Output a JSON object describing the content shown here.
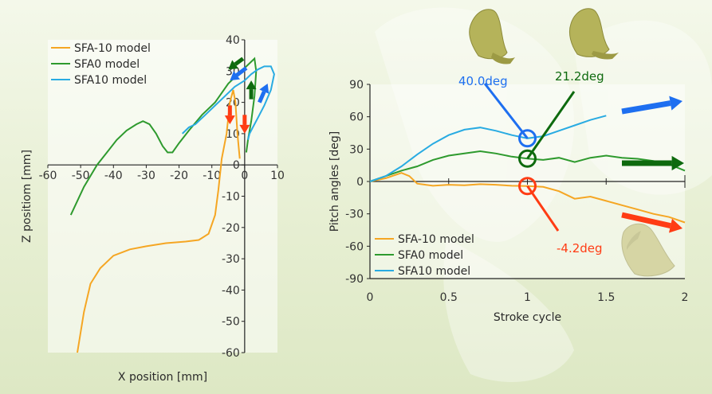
{
  "chart_data": [
    {
      "type": "line",
      "xlabel": "X position [mm]",
      "ylabel": "Z positiom [mm]",
      "xlim": [
        -60,
        10
      ],
      "ylim": [
        -60,
        40
      ],
      "xticks": [
        -60,
        -50,
        -40,
        -30,
        -20,
        -10,
        0,
        10
      ],
      "yticks": [
        -60,
        -50,
        -40,
        -30,
        -20,
        -10,
        0,
        10,
        20,
        30,
        40
      ],
      "legend_position": "top-left",
      "legend": [
        "SFA-10 model",
        "SFA0 model",
        "SFA10 model"
      ],
      "series": [
        {
          "name": "SFA-10 model",
          "color": "#f5a623",
          "points": [
            [
              -51,
              -60
            ],
            [
              -49,
              -47
            ],
            [
              -47,
              -38
            ],
            [
              -44,
              -33
            ],
            [
              -40,
              -29
            ],
            [
              -35,
              -27
            ],
            [
              -30,
              -26
            ],
            [
              -24,
              -25
            ],
            [
              -18,
              -24.5
            ],
            [
              -14,
              -24
            ],
            [
              -11,
              -22
            ],
            [
              -9,
              -16
            ],
            [
              -8,
              -8
            ],
            [
              -7,
              2
            ],
            [
              -5.5,
              10
            ],
            [
              -4.5,
              20
            ],
            [
              -3.5,
              24
            ],
            [
              -2.8,
              20
            ],
            [
              -2.2,
              10
            ],
            [
              -1.5,
              2
            ]
          ]
        },
        {
          "name": "SFA0 model",
          "color": "#2e9a2e",
          "points": [
            [
              -53,
              -16
            ],
            [
              -49,
              -7
            ],
            [
              -45,
              0
            ],
            [
              -42,
              4
            ],
            [
              -39,
              8
            ],
            [
              -36,
              11
            ],
            [
              -33,
              13
            ],
            [
              -31,
              14
            ],
            [
              -29,
              13
            ],
            [
              -27,
              10
            ],
            [
              -25,
              6
            ],
            [
              -23.5,
              4
            ],
            [
              -22,
              4
            ],
            [
              -20,
              7
            ],
            [
              -17,
              11
            ],
            [
              -13,
              16
            ],
            [
              -9,
              20
            ],
            [
              -5,
              26
            ],
            [
              -2,
              29
            ],
            [
              0,
              31
            ],
            [
              2,
              33
            ],
            [
              3,
              34
            ],
            [
              3.5,
              30
            ],
            [
              3,
              22
            ],
            [
              2,
              14
            ],
            [
              1,
              8
            ],
            [
              0.5,
              4
            ]
          ]
        },
        {
          "name": "SFA10 model",
          "color": "#29abe2",
          "points": [
            [
              -19,
              10
            ],
            [
              -17,
              12
            ],
            [
              -15,
              13
            ],
            [
              -12,
              16
            ],
            [
              -9,
              19
            ],
            [
              -6,
              22
            ],
            [
              -3,
              25
            ],
            [
              0,
              27
            ],
            [
              2,
              29
            ],
            [
              4,
              30.5
            ],
            [
              6,
              31.5
            ],
            [
              8,
              31.5
            ],
            [
              9,
              29
            ],
            [
              8,
              24
            ],
            [
              6,
              19
            ],
            [
              4,
              15
            ],
            [
              2.5,
              12
            ],
            [
              1.5,
              10
            ],
            [
              1,
              8
            ]
          ]
        }
      ],
      "arrows": [
        {
          "color": "#1e6ff0",
          "from": [
            0.5,
            31
          ],
          "to": [
            -4.5,
            27
          ]
        },
        {
          "color": "#0e6a0e",
          "from": [
            -0.5,
            34
          ],
          "to": [
            -5,
            30.5
          ]
        },
        {
          "color": "#ff3c14",
          "from": [
            -4.5,
            19
          ],
          "to": [
            -4.5,
            13
          ]
        },
        {
          "color": "#ff3c14",
          "from": [
            0,
            16
          ],
          "to": [
            0,
            10
          ]
        },
        {
          "color": "#0e6a0e",
          "from": [
            2,
            21
          ],
          "to": [
            2,
            27
          ]
        },
        {
          "color": "#1e6ff0",
          "from": [
            4.5,
            20
          ],
          "to": [
            7,
            26
          ]
        }
      ]
    },
    {
      "type": "line",
      "xlabel": "Stroke cycle",
      "ylabel": "Pitch angles [deg]",
      "xlim": [
        0,
        2
      ],
      "ylim": [
        -90,
        90
      ],
      "xticks": [
        0,
        0.5,
        1,
        1.5,
        2
      ],
      "yticks": [
        -90,
        -60,
        -30,
        0,
        30,
        60,
        90
      ],
      "legend_position": "bottom-left",
      "legend": [
        "SFA-10 model",
        "SFA0 model",
        "SFA10 model"
      ],
      "series": [
        {
          "name": "SFA-10 model",
          "color": "#f5a623",
          "points": [
            [
              0,
              0
            ],
            [
              0.1,
              3
            ],
            [
              0.2,
              8
            ],
            [
              0.25,
              5
            ],
            [
              0.3,
              -2
            ],
            [
              0.4,
              -4
            ],
            [
              0.5,
              -3
            ],
            [
              0.6,
              -3.5
            ],
            [
              0.7,
              -2.5
            ],
            [
              0.8,
              -3
            ],
            [
              0.9,
              -4
            ],
            [
              1.0,
              -4.2
            ],
            [
              1.1,
              -5
            ],
            [
              1.2,
              -9
            ],
            [
              1.3,
              -16
            ],
            [
              1.4,
              -14
            ],
            [
              1.5,
              -18
            ],
            [
              1.6,
              -22
            ],
            [
              1.7,
              -26
            ],
            [
              1.8,
              -30
            ],
            [
              1.9,
              -33
            ],
            [
              2.0,
              -38
            ]
          ]
        },
        {
          "name": "SFA0 model",
          "color": "#2e9a2e",
          "points": [
            [
              0,
              0
            ],
            [
              0.1,
              5
            ],
            [
              0.2,
              10
            ],
            [
              0.3,
              14
            ],
            [
              0.4,
              20
            ],
            [
              0.5,
              24
            ],
            [
              0.6,
              26
            ],
            [
              0.7,
              28
            ],
            [
              0.8,
              26
            ],
            [
              0.9,
              23
            ],
            [
              1.0,
              21.2
            ],
            [
              1.1,
              20
            ],
            [
              1.2,
              22
            ],
            [
              1.3,
              18
            ],
            [
              1.4,
              22
            ],
            [
              1.5,
              24
            ],
            [
              1.6,
              22
            ],
            [
              1.7,
              21
            ],
            [
              1.8,
              19
            ],
            [
              1.9,
              16
            ],
            [
              2.0,
              10
            ]
          ]
        },
        {
          "name": "SFA10 model",
          "color": "#29abe2",
          "points": [
            [
              0,
              0
            ],
            [
              0.1,
              5
            ],
            [
              0.2,
              14
            ],
            [
              0.3,
              25
            ],
            [
              0.4,
              35
            ],
            [
              0.5,
              43
            ],
            [
              0.6,
              48
            ],
            [
              0.7,
              50
            ],
            [
              0.8,
              47
            ],
            [
              0.9,
              43
            ],
            [
              1.0,
              40
            ],
            [
              1.1,
              42
            ],
            [
              1.2,
              47
            ],
            [
              1.3,
              52
            ],
            [
              1.4,
              57
            ],
            [
              1.5,
              61
            ]
          ]
        }
      ],
      "annotations": [
        {
          "text": "40.0deg",
          "color": "#1e6ff0",
          "x": 1.0,
          "y": 40.0
        },
        {
          "text": "21.2deg",
          "color": "#0e6a0e",
          "x": 1.0,
          "y": 21.2
        },
        {
          "text": "-4.2deg",
          "color": "#ff3c14",
          "x": 1.0,
          "y": -4.2
        }
      ]
    }
  ],
  "colors": {
    "sfa_minus10": "#f5a623",
    "sfa0": "#2e9a2e",
    "sfa10": "#29abe2",
    "arrow_blue": "#1e6ff0",
    "arrow_green": "#0e6a0e",
    "arrow_red": "#ff3c14",
    "wing": "#b5b35a"
  }
}
